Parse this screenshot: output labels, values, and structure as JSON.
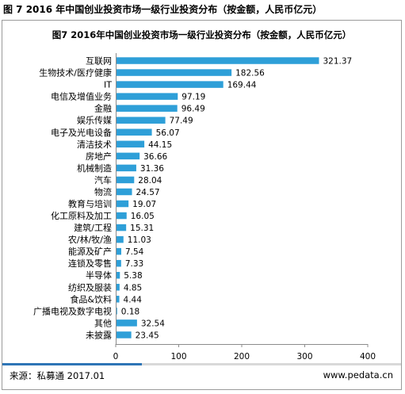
{
  "figure_caption": "图 7 2016 年中国创业投资市场一级行业投资分布（按金额，人民币亿元）",
  "footer": {
    "source": "来源：私募通 2017.01",
    "website": "www.pedata.cn"
  },
  "colors": {
    "bar": "#2e9fd8",
    "footer_accent": "#2e75b6"
  },
  "chart_data": {
    "type": "bar",
    "orientation": "horizontal",
    "title": "图7 2016年中国创业投资市场一级行业投资分布（按金额，人民币亿元）",
    "categories": [
      "互联网",
      "生物技术/医疗健康",
      "IT",
      "电信及增值业务",
      "金融",
      "娱乐传媒",
      "电子及光电设备",
      "清洁技术",
      "房地产",
      "机械制造",
      "汽车",
      "物流",
      "教育与培训",
      "化工原料及加工",
      "建筑/工程",
      "农/林/牧/渔",
      "能源及矿产",
      "连锁及零售",
      "半导体",
      "纺织及服装",
      "食品&饮料",
      "广播电视及数字电视",
      "其他",
      "未披露"
    ],
    "values": [
      321.37,
      182.56,
      169.44,
      97.19,
      96.49,
      77.49,
      56.07,
      44.15,
      36.66,
      31.36,
      28.04,
      24.57,
      19.07,
      16.05,
      15.31,
      11.03,
      7.54,
      7.33,
      5.38,
      4.85,
      4.44,
      0.18,
      32.54,
      23.45
    ],
    "value_labels": [
      "321.37",
      "182.56",
      "169.44",
      "97.19",
      "96.49",
      "77.49",
      "56.07",
      "44.15",
      "36.66",
      "31.36",
      "28.04",
      "24.57",
      "19.07",
      "16.05",
      "15.31",
      "11.03",
      "7.54",
      "7.33",
      "5.38",
      "4.85",
      "4.44",
      "0.18",
      "32.54",
      "23.45"
    ],
    "xlim": [
      0,
      400
    ],
    "xticks": [
      "0",
      "100",
      "200",
      "300",
      "400"
    ],
    "xlabel": "",
    "ylabel": "",
    "grid": false,
    "legend": false
  }
}
